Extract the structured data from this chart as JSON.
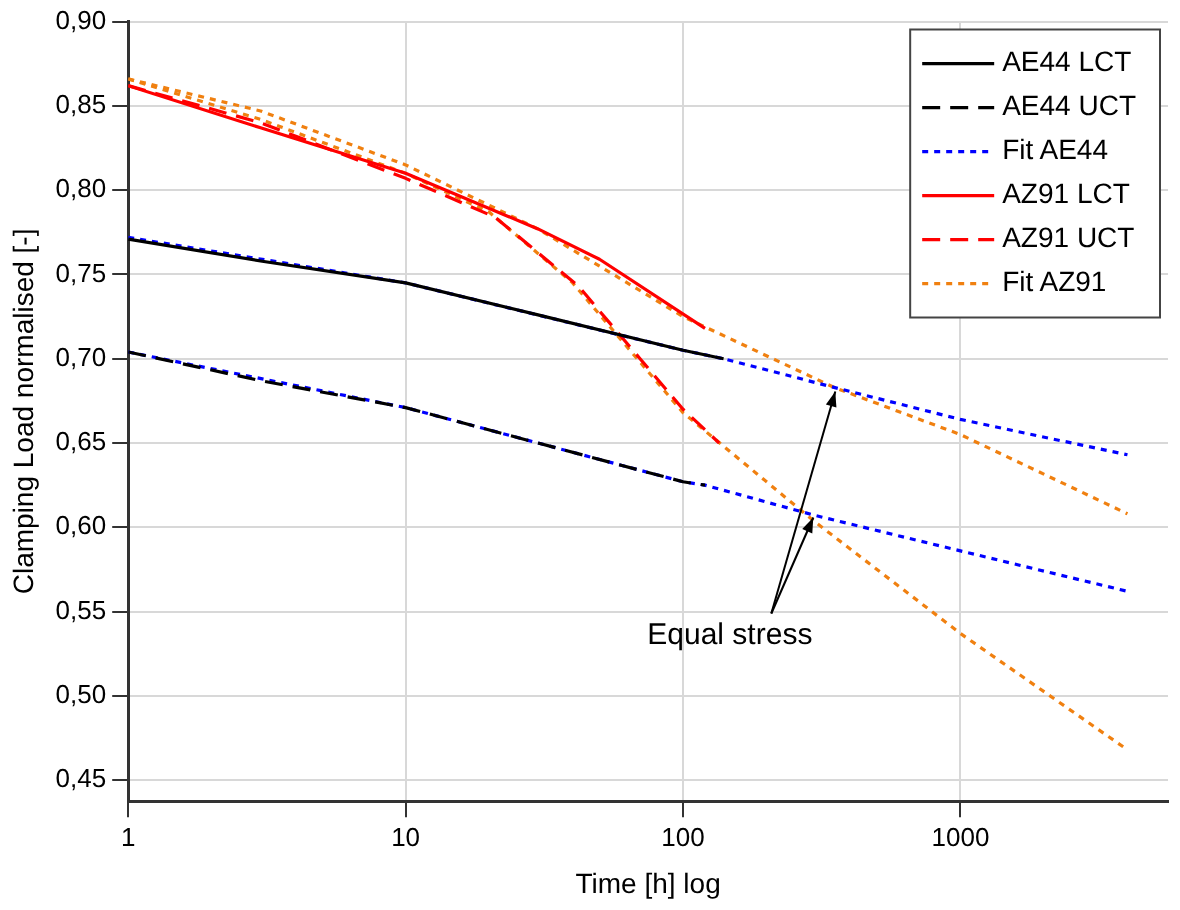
{
  "chart_data": {
    "type": "line",
    "xlabel": "Time [h] log",
    "ylabel": "Clamping Load normalised [-]",
    "log": "x",
    "xlim": [
      1,
      5600
    ],
    "xticks": [
      1,
      10,
      100,
      1000
    ],
    "ylim": [
      0.4375,
      0.9
    ],
    "yticks": [
      {
        "value": 0.45,
        "label": "0,45"
      },
      {
        "value": 0.5,
        "label": "0,50"
      },
      {
        "value": 0.55,
        "label": "0,55"
      },
      {
        "value": 0.6,
        "label": "0,60"
      },
      {
        "value": 0.65,
        "label": "0,65"
      },
      {
        "value": 0.7,
        "label": "0,70"
      },
      {
        "value": 0.75,
        "label": "0,75"
      },
      {
        "value": 0.8,
        "label": "0,80"
      },
      {
        "value": 0.85,
        "label": "0,85"
      },
      {
        "value": 0.9,
        "label": "0,90"
      }
    ],
    "grid": true,
    "legend": "top right",
    "marker": "none",
    "annotations": [
      {
        "text": "Equal stress",
        "x": 290,
        "y": 0.607
      }
    ],
    "series": [
      {
        "name": "AE44 LCT",
        "color": "#000000",
        "line_style": "solid",
        "x": [
          1,
          3,
          10,
          30,
          100,
          140
        ],
        "values": [
          0.771,
          0.758,
          0.745,
          0.726,
          0.705,
          0.7
        ]
      },
      {
        "name": "AE44 UCT",
        "color": "#000000",
        "line_style": "dashed",
        "x": [
          1,
          3,
          10,
          30,
          100,
          120
        ],
        "values": [
          0.704,
          0.687,
          0.671,
          0.65,
          0.627,
          0.625
        ]
      },
      {
        "name": "Fit AE44",
        "color": "#0000ff",
        "line_style": "dotted",
        "x": [
          1,
          10,
          100,
          140,
          350,
          1000,
          4000
        ],
        "values": [
          0.772,
          0.745,
          0.705,
          0.7,
          0.683,
          0.664,
          0.643
        ]
      },
      {
        "name": "AZ91 LCT",
        "color": "#ff0000",
        "line_style": "solid",
        "x": [
          1,
          3,
          10,
          30,
          50,
          120
        ],
        "values": [
          0.862,
          0.837,
          0.81,
          0.777,
          0.759,
          0.718
        ]
      },
      {
        "name": "AZ91 UCT",
        "color": "#ff0000",
        "line_style": "dashed",
        "x": [
          1,
          3,
          10,
          21,
          42,
          70,
          100,
          135
        ],
        "values": [
          0.862,
          0.84,
          0.807,
          0.784,
          0.743,
          0.7,
          0.67,
          0.65
        ]
      },
      {
        "name": "Fit AZ91",
        "color": "#f08010",
        "line_style": "dotted",
        "x": [
          1,
          3,
          10,
          30,
          100,
          350,
          1000,
          4000
        ],
        "values": [
          0.866,
          0.847,
          0.815,
          0.777,
          0.725,
          0.683,
          0.655,
          0.608
        ]
      },
      {
        "color": "#0000ff",
        "line_style": "dotted",
        "x": [
          1,
          10,
          100,
          120,
          300,
          1000,
          4000
        ],
        "values": [
          0.704,
          0.671,
          0.627,
          0.625,
          0.607,
          0.586,
          0.562
        ]
      },
      {
        "color": "#f08010",
        "line_style": "dotted",
        "x": [
          1,
          3,
          10,
          20,
          40,
          100,
          300,
          1000,
          4000
        ],
        "values": [
          0.866,
          0.842,
          0.81,
          0.787,
          0.745,
          0.668,
          0.603,
          0.537,
          0.468
        ]
      }
    ]
  }
}
